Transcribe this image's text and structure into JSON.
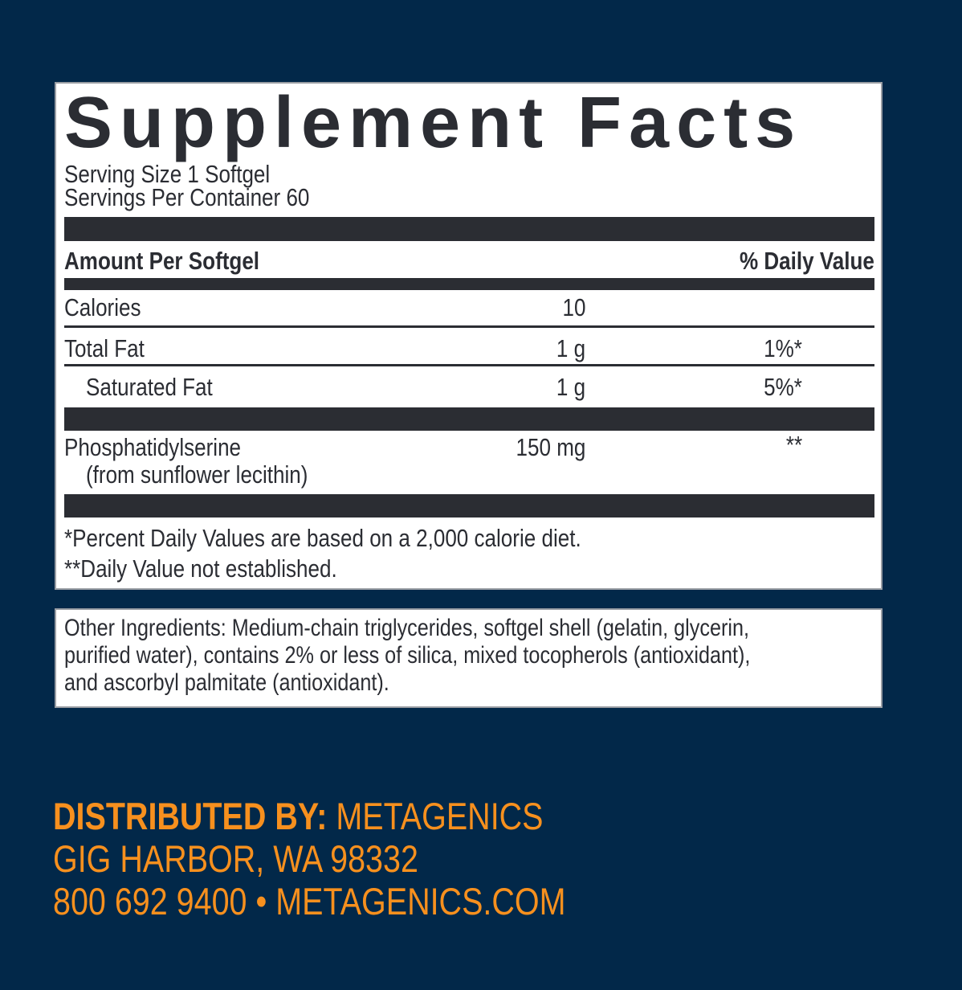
{
  "facts": {
    "title": "Supplement Facts",
    "serving_size": "Serving Size 1 Softgel",
    "servings_per_container": "Servings Per Container 60",
    "amount_header": "Amount Per Softgel",
    "dv_header": "% Daily Value",
    "rows": [
      {
        "name": "Calories",
        "amount": "10",
        "dv": ""
      },
      {
        "name": "Total Fat",
        "amount": "1 g",
        "dv": "1%*"
      },
      {
        "name": "Saturated Fat",
        "amount": "1 g",
        "dv": "5%*"
      },
      {
        "name": "Phosphatidylserine",
        "sub": "(from sunflower lecithin)",
        "amount": "150 mg",
        "dv": "**"
      }
    ],
    "footnote_1": "*Percent Daily Values are based on a 2,000 calorie diet.",
    "footnote_2": "**Daily Value not established."
  },
  "ingredients": {
    "line_1": "Other Ingredients: Medium-chain triglycerides, softgel shell (gelatin, glycerin,",
    "line_2": "purified water), contains 2% or less of silica, mixed tocopherols (antioxidant),",
    "line_3": "and ascorbyl palmitate (antioxidant)."
  },
  "distributor": {
    "label": "DISTRIBUTED BY:",
    "name": "METAGENICS",
    "address": "GIG HARBOR, WA 98332",
    "phone": "800 692 9400",
    "separator": "•",
    "website": "METAGENICS.COM"
  },
  "colors": {
    "background": "#022849",
    "text": "#2b2d33",
    "accent": "#f7901e"
  }
}
